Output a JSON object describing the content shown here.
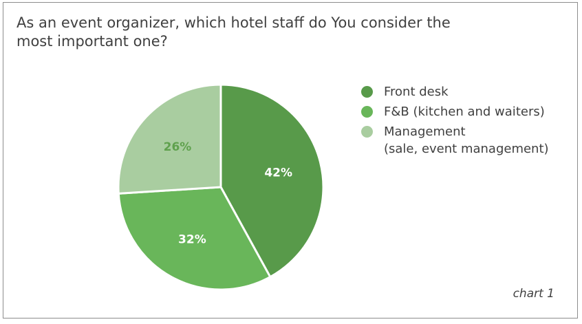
{
  "title": "As an event organizer, which hotel staff do You consider the most important one?",
  "footnote": "chart 1",
  "chart_data": {
    "type": "pie",
    "title": "As an event organizer, which hotel staff do You consider the most important one?",
    "legend_position": "right",
    "slices": [
      {
        "label": "Front desk",
        "label_detail": "",
        "value": 42,
        "display": "42%",
        "color": "#589a4a",
        "label_color": "#ffffff"
      },
      {
        "label": "F&B (kitchen and waiters)",
        "label_detail": "",
        "value": 32,
        "display": "32%",
        "color": "#69b65a",
        "label_color": "#ffffff"
      },
      {
        "label": "Management",
        "label_detail": "(sale, event management)",
        "value": 26,
        "display": "26%",
        "color": "#a9cda0",
        "label_color": "#5fa14d"
      }
    ]
  }
}
